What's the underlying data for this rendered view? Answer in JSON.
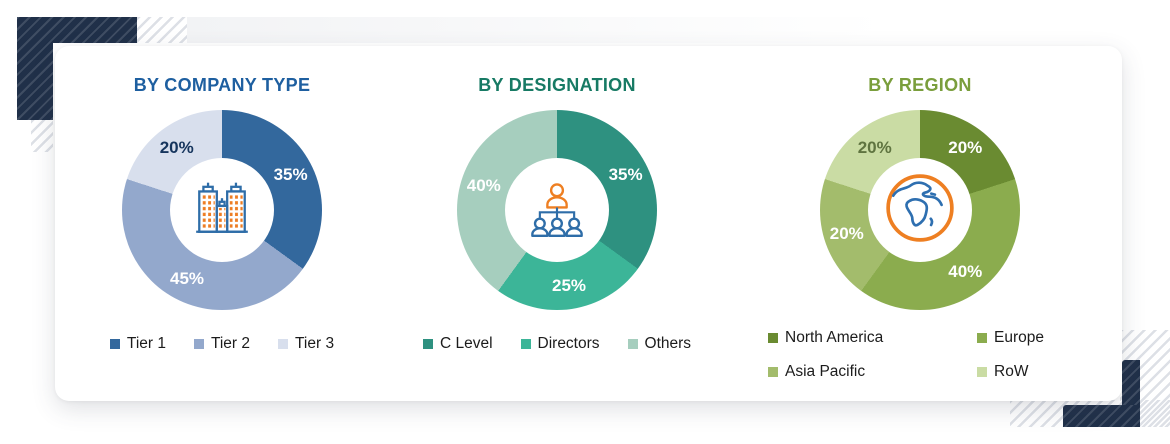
{
  "page": {
    "background": "#ffffff",
    "card_background": "#ffffff"
  },
  "decor": {
    "navy": "#203049",
    "hatch_line": "#dde0e6"
  },
  "chart_data": [
    {
      "type": "donut",
      "title": "BY COMPANY TYPE",
      "title_color": "#1E5FA0",
      "unit": "%",
      "labels": [
        "Tier 1",
        "Tier 2",
        "Tier 3"
      ],
      "values": [
        35,
        45,
        20
      ],
      "colors": [
        "#33689D",
        "#93A8CC",
        "#D8DFED"
      ],
      "value_label_colors": [
        "#FFFFFF",
        "#FFFFFF",
        "#16355D"
      ],
      "center_icon": "buildings-icon",
      "legend_position": "bottom",
      "start_angle_deg": 0,
      "direction": "clockwise"
    },
    {
      "type": "donut",
      "title": "BY DESIGNATION",
      "title_color": "#177A64",
      "unit": "%",
      "labels": [
        "C Level",
        "Directors",
        "Others"
      ],
      "values": [
        35,
        25,
        40
      ],
      "colors": [
        "#2E9180",
        "#3CB598",
        "#A6CEBE"
      ],
      "value_label_colors": [
        "#FFFFFF",
        "#FFFFFF",
        "#FFFFFF"
      ],
      "center_icon": "org-chart-icon",
      "legend_position": "bottom",
      "start_angle_deg": 0,
      "direction": "clockwise"
    },
    {
      "type": "donut",
      "title": "BY REGION",
      "title_color": "#7A9E3C",
      "unit": "%",
      "labels": [
        "North America",
        "Europe",
        "Asia Pacific",
        "RoW"
      ],
      "values": [
        20,
        40,
        20,
        20
      ],
      "colors": [
        "#6A8B31",
        "#8BAC4E",
        "#A3BC6C",
        "#CADCA4"
      ],
      "value_label_colors": [
        "#FFFFFF",
        "#FFFFFF",
        "#FFFFFF",
        "#5F7440"
      ],
      "center_icon": "globe-icon",
      "legend_position": "bottom",
      "legend_columns": 2,
      "start_angle_deg": 0,
      "direction": "clockwise"
    }
  ]
}
